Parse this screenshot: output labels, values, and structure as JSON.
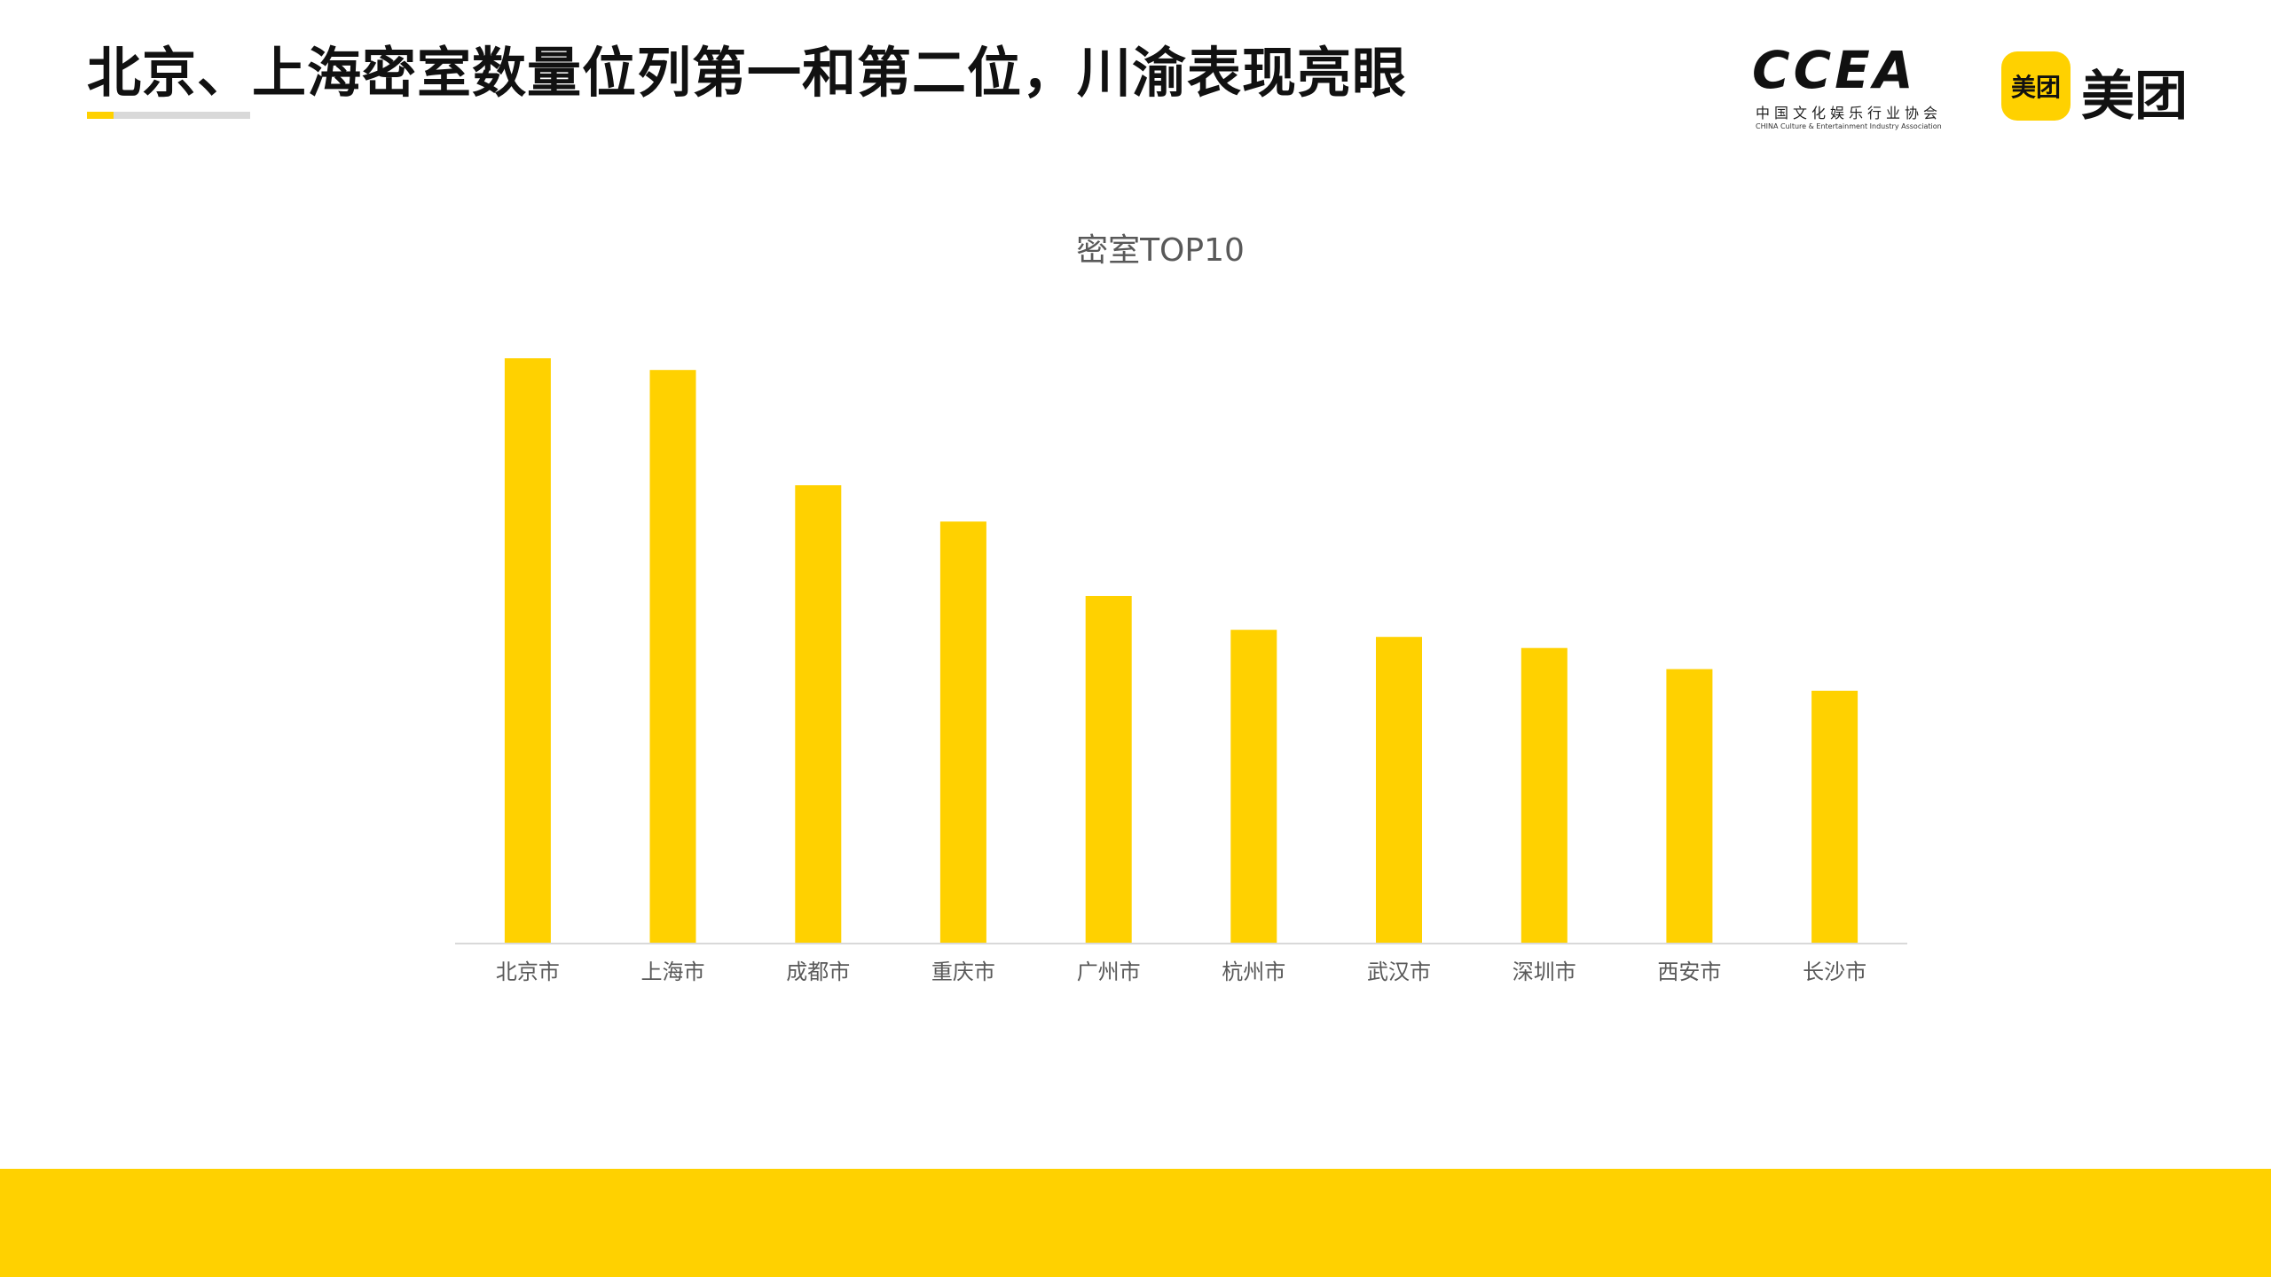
{
  "slide": {
    "title": "北京、上海密室数量位列第一和第二位，川渝表现亮眼"
  },
  "logos": {
    "ccea": {
      "mark": "CCEA",
      "cn_name": "中国文化娱乐行业协会",
      "en_name": "CHINA Culture & Entertainment Industry Association"
    },
    "meituan": {
      "badge": "美团",
      "word": "美团"
    }
  },
  "colors": {
    "accent": "#FFD100",
    "axis": "#D9D9D9",
    "text_dark": "#111111",
    "label": "#595959"
  },
  "chart_data": {
    "type": "bar",
    "title": "密室TOP10",
    "categories": [
      "北京市",
      "上海市",
      "成都市",
      "重庆市",
      "广州市",
      "杭州市",
      "武汉市",
      "深圳市",
      "西安市",
      "长沙市"
    ],
    "values": [
      100,
      98,
      78.3,
      72.1,
      59.4,
      53.6,
      52.4,
      50.5,
      46.9,
      43.2
    ],
    "ylim": [
      0,
      100
    ],
    "y_axis_visible": false,
    "grid": false,
    "legend": "none",
    "bar_color": "#FFD100"
  }
}
